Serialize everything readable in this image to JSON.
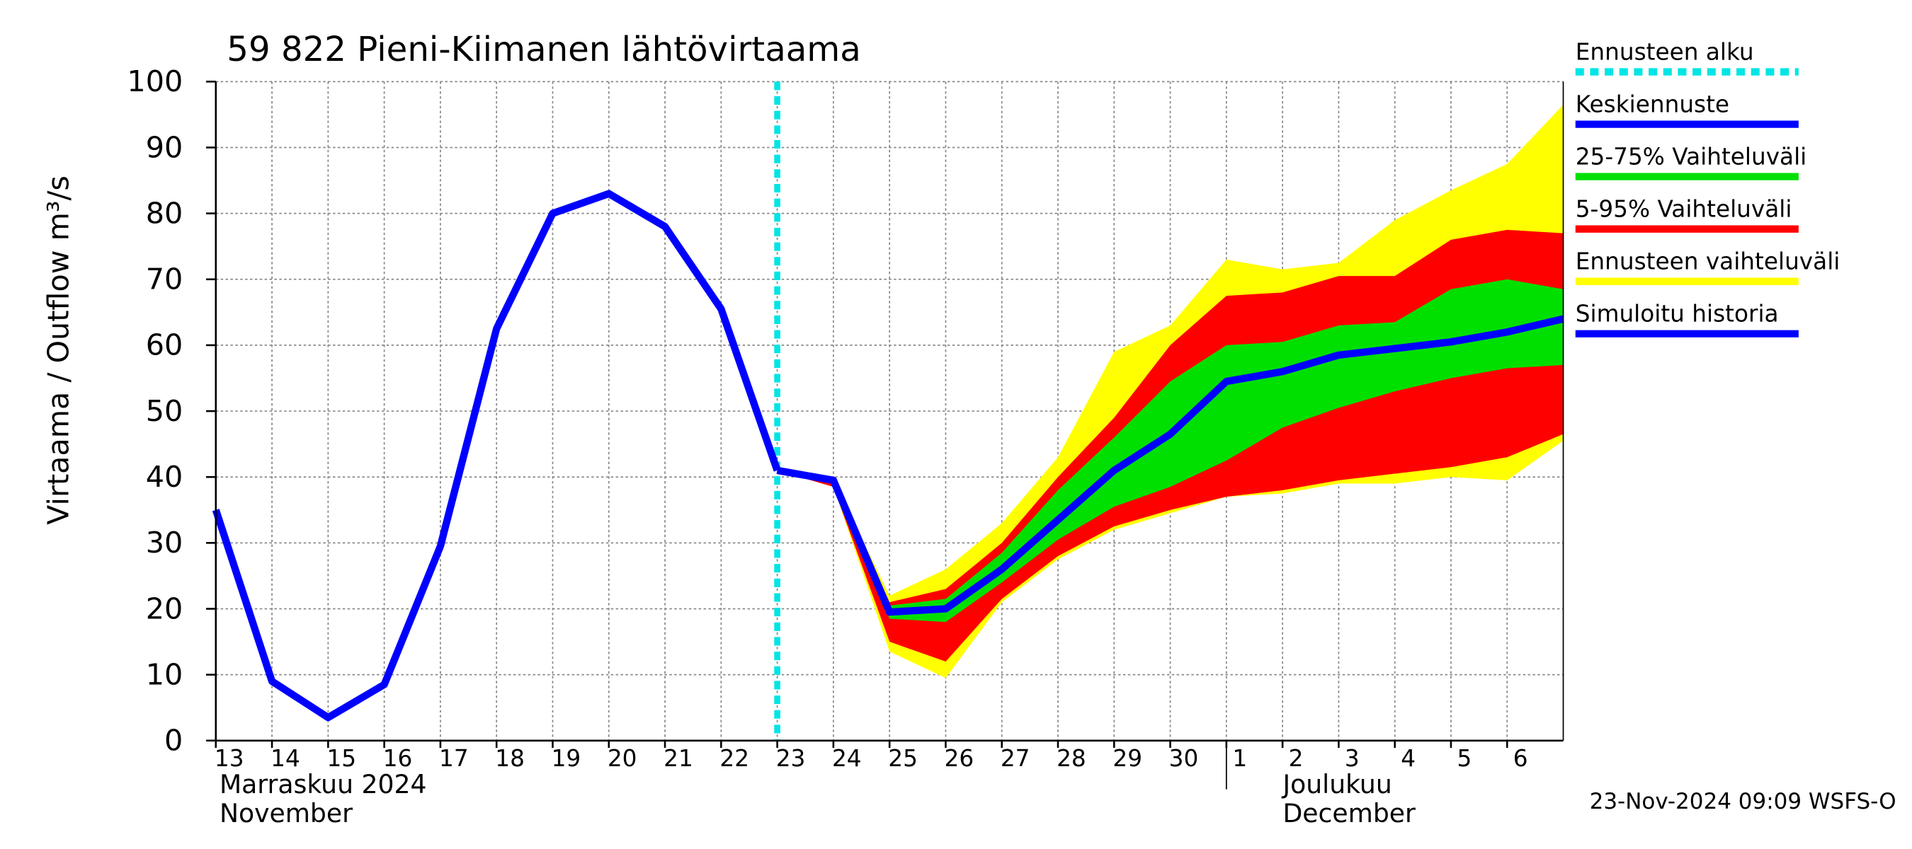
{
  "chart_data": {
    "type": "line",
    "title": "59 822 Pieni-Kiimanen lähtövirtaama",
    "ylabel": "Virtaama / Outflow    m³/s",
    "footer": "23-Nov-2024 09:09 WSFS-O",
    "month_labels": [
      [
        "Marraskuu 2024",
        "November"
      ],
      [
        "Joulukuu",
        "December"
      ]
    ],
    "x": [
      "2024-11-13",
      "2024-11-14",
      "2024-11-15",
      "2024-11-16",
      "2024-11-17",
      "2024-11-18",
      "2024-11-19",
      "2024-11-20",
      "2024-11-21",
      "2024-11-22",
      "2024-11-23",
      "2024-11-24",
      "2024-11-25",
      "2024-11-26",
      "2024-11-27",
      "2024-11-28",
      "2024-11-29",
      "2024-11-30",
      "2024-12-01",
      "2024-12-02",
      "2024-12-03",
      "2024-12-04",
      "2024-12-05",
      "2024-12-06",
      "2024-12-07"
    ],
    "xlim": [
      "2024-11-13",
      "2024-12-07"
    ],
    "xticks": [
      {
        "value": "2024-11-13",
        "label": "13"
      },
      {
        "value": "2024-11-14",
        "label": "14"
      },
      {
        "value": "2024-11-15",
        "label": "15"
      },
      {
        "value": "2024-11-16",
        "label": "16"
      },
      {
        "value": "2024-11-17",
        "label": "17"
      },
      {
        "value": "2024-11-18",
        "label": "18"
      },
      {
        "value": "2024-11-19",
        "label": "19"
      },
      {
        "value": "2024-11-20",
        "label": "20"
      },
      {
        "value": "2024-11-21",
        "label": "21"
      },
      {
        "value": "2024-11-22",
        "label": "22"
      },
      {
        "value": "2024-11-23",
        "label": "23"
      },
      {
        "value": "2024-11-24",
        "label": "24"
      },
      {
        "value": "2024-11-25",
        "label": "25"
      },
      {
        "value": "2024-11-26",
        "label": "26"
      },
      {
        "value": "2024-11-27",
        "label": "27"
      },
      {
        "value": "2024-11-28",
        "label": "28"
      },
      {
        "value": "2024-11-29",
        "label": "29"
      },
      {
        "value": "2024-11-30",
        "label": "30"
      },
      {
        "value": "2024-12-01",
        "label": "1"
      },
      {
        "value": "2024-12-02",
        "label": "2"
      },
      {
        "value": "2024-12-03",
        "label": "3"
      },
      {
        "value": "2024-12-04",
        "label": "4"
      },
      {
        "value": "2024-12-05",
        "label": "5"
      },
      {
        "value": "2024-12-06",
        "label": "6"
      }
    ],
    "ylim": [
      0,
      100
    ],
    "yticks": [
      0,
      10,
      20,
      30,
      40,
      50,
      60,
      70,
      80,
      90,
      100
    ],
    "grid": true,
    "forecast_start": {
      "name": "Ennusteen alku",
      "color": "#00e5e5",
      "x": "2024-11-23"
    },
    "series": [
      {
        "name": "Keskiennuste",
        "color": "#0000ff",
        "values": [
          null,
          null,
          null,
          null,
          null,
          null,
          null,
          null,
          null,
          null,
          41,
          39.5,
          19.5,
          20,
          26,
          33.5,
          41,
          46.5,
          54.5,
          56,
          58.5,
          59.5,
          60.5,
          62,
          64
        ]
      },
      {
        "name": "Simuloitu historia",
        "color": "#0000ff",
        "values": [
          35,
          9,
          3.5,
          8.5,
          29.5,
          62.5,
          80,
          83,
          78,
          65.5,
          41,
          null,
          null,
          null,
          null,
          null,
          null,
          null,
          null,
          null,
          null,
          null,
          null,
          null,
          null
        ]
      }
    ],
    "bands": [
      {
        "name": "Ennusteen vaihteluväli",
        "color": "#ffff00",
        "low": [
          null,
          null,
          null,
          null,
          null,
          null,
          null,
          null,
          null,
          null,
          41,
          38.5,
          13.5,
          9.5,
          21,
          27.5,
          32,
          34.5,
          37,
          37.5,
          39,
          39,
          40,
          39.5,
          45.5
        ],
        "high": [
          null,
          null,
          null,
          null,
          null,
          null,
          null,
          null,
          null,
          null,
          41,
          39.5,
          22,
          26,
          33,
          43,
          59,
          63,
          73,
          71.5,
          72.5,
          79,
          83.5,
          87.5,
          96.5
        ]
      },
      {
        "name": "5-95% Vaihteluväli",
        "color": "#ff0000",
        "low": [
          null,
          null,
          null,
          null,
          null,
          null,
          null,
          null,
          null,
          null,
          41,
          38.5,
          15,
          12,
          21.5,
          28,
          32.5,
          35,
          37,
          38,
          39.5,
          40.5,
          41.5,
          43,
          46.5
        ],
        "high": [
          null,
          null,
          null,
          null,
          null,
          null,
          null,
          null,
          null,
          null,
          41,
          39.5,
          21,
          23,
          30,
          40,
          49,
          60,
          67.5,
          68,
          70.5,
          70.5,
          76,
          77.5,
          77
        ]
      },
      {
        "name": "25-75% Vaihteluväli",
        "color": "#00e000",
        "low": [
          null,
          null,
          null,
          null,
          null,
          null,
          null,
          null,
          null,
          null,
          41,
          39,
          18.5,
          18,
          24,
          30.5,
          35.5,
          38.5,
          42.5,
          47.5,
          50.5,
          53,
          55,
          56.5,
          57
        ],
        "high": [
          null,
          null,
          null,
          null,
          null,
          null,
          null,
          null,
          null,
          null,
          41,
          39.5,
          20.5,
          21.5,
          28.5,
          38,
          46,
          54.5,
          60,
          60.5,
          63,
          63.5,
          68.5,
          70,
          68.5
        ]
      }
    ],
    "legend_order": [
      "forecast_start",
      "series.0",
      "bands.2",
      "bands.1",
      "bands.0",
      "series.1"
    ]
  }
}
